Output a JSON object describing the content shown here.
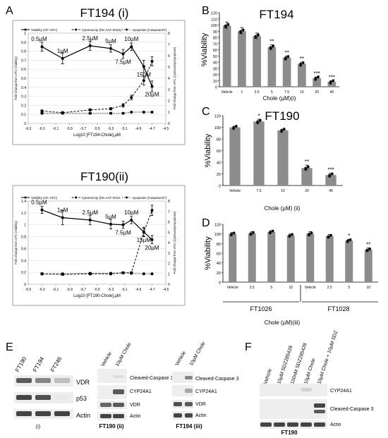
{
  "panels": {
    "A": {
      "letter": "A",
      "chart_i": {
        "title": "FT194 (i)",
        "legend": [
          "Viability (GF-AFC)",
          "Cytotoxicity (bis-AAF-R110)",
          "Apoptosis (Caspase3/7)"
        ],
        "xlabel": "Log10 [FT194-Chole],µM",
        "ylabel_left": "Fold Change from UTC (Viability)",
        "ylabel_right": "Fold Change from UTC (Cytotoxicity/Apoptosis)",
        "xticks": [
          "-6.5",
          "-6.3",
          "-6.1",
          "-5.9",
          "-5.7",
          "-5.5",
          "-5.3",
          "-5.1",
          "-4.9",
          "-4.7",
          "-4.5"
        ],
        "yticks_left": [
          "0",
          "0.1",
          "0.2",
          "0.3",
          "0.4",
          "0.5",
          "0.6",
          "0.7",
          "0.8",
          "0.9",
          "1"
        ],
        "yticks_right": [
          "0",
          "1",
          "2",
          "3",
          "4",
          "5",
          "6",
          "7",
          "8"
        ],
        "dose_labels": [
          "0.5µM",
          "1µM",
          "2.5µM",
          "5µM",
          "7.5µM",
          "10µM",
          "15µM",
          "20µM"
        ]
      },
      "chart_ii": {
        "title": "FT190(ii)",
        "legend": [
          "Viability (GF-AFC)",
          "Cytotoxicity (bis-AAF-R110",
          "Apoptosis (Caspase3/7)"
        ],
        "xlabel": "Log10 [FT190-Chole],µM",
        "ylabel_left": "Fold Change from UTC (Viability)",
        "ylabel_right": "Fold Change from UTC (Cytotoxicity/Apoptosis)",
        "xticks": [
          "-6.5",
          "-6.3",
          "-6.1",
          "-5.9",
          "-5.7",
          "-5.5",
          "-5.3",
          "-5.1",
          "-4.9",
          "-4.7",
          "-4.5"
        ],
        "yticks_left": [
          "0",
          "0.2",
          "0.4",
          "0.6",
          "0.8",
          "1",
          "1.2",
          "1.4"
        ],
        "yticks_right": [
          "0",
          "1",
          "2",
          "3",
          "4",
          "5",
          "6",
          "7",
          "8"
        ],
        "dose_labels": [
          "0.5µM",
          "1µM",
          "2.5µM",
          "5µM",
          "7.5µM",
          "10µM",
          "15µM",
          "20µM"
        ]
      }
    },
    "B": {
      "letter": "B",
      "title": "FT194",
      "ylabel": "%Viability",
      "xlabel": "Chole (µM)(i)",
      "yticks": [
        "0",
        "10",
        "20",
        "30",
        "40",
        "50",
        "60",
        "70",
        "80",
        "90",
        "100",
        "110",
        "120"
      ]
    },
    "C": {
      "letter": "C",
      "title": "FT190",
      "ylabel": "%Viability",
      "xlabel": "Chole (µM) (ii)",
      "yticks": [
        "0",
        "20",
        "40",
        "60",
        "80",
        "100",
        "120"
      ]
    },
    "D": {
      "letter": "D",
      "ylabel": "%Viability",
      "xlabel": "Chole (µM)(iii)",
      "yticks": [
        "0",
        "20",
        "40",
        "60",
        "80",
        "100",
        "120"
      ],
      "groups": [
        "FT1026",
        "FT1028"
      ]
    },
    "E": {
      "letter": "E",
      "blot_i": {
        "lanes": [
          "FT190",
          "FT194",
          "FT246"
        ],
        "bands": [
          "VDR",
          "p53",
          "Actin"
        ],
        "caption": "(i)"
      },
      "blot_ii": {
        "lanes": [
          "Vehicle",
          "10µM Chole"
        ],
        "bands": [
          "Cleaved-Caspase 3",
          "CYP24A1",
          "VDR",
          "Actin"
        ],
        "caption": "FT190 (ii)"
      },
      "blot_iii": {
        "lanes": [
          "Vehicle",
          "10µM Chole"
        ],
        "bands": [
          "Cleaved-Caspase 3",
          "CYP24A1",
          "VDR",
          "Actin"
        ],
        "caption": "FT194 (iii)"
      }
    },
    "F": {
      "letter": "F",
      "lanes": [
        "Vehicle",
        "10µM SDZ285428",
        "100nM SDZ285428",
        "10µM Chole",
        "10µM Chole + 10µM SDZ"
      ],
      "bands": [
        "CYP24A1",
        "Cleaved-Caspase 3",
        "Actin"
      ],
      "caption": "FT190"
    }
  },
  "chart_data": [
    {
      "type": "line",
      "panel": "A(i)",
      "title": "FT194 (i)",
      "xlabel": "Log10 [FT194-Chole],µM",
      "ylabel": "Fold Change from UTC (Viability)",
      "xlim": [
        -6.5,
        -4.5
      ],
      "ylim_left": [
        0,
        1
      ],
      "ylim_right": [
        0,
        8
      ],
      "series": [
        {
          "name": "Viability (GF-AFC)",
          "axis": "left",
          "style": "solid",
          "x": [
            -6.3,
            -6.0,
            -5.6,
            -5.3,
            -5.12,
            -5.0,
            -4.82,
            -4.7
          ],
          "y": [
            0.85,
            0.72,
            0.86,
            0.83,
            0.77,
            0.85,
            0.63,
            0.41
          ],
          "err": [
            0.05,
            0.06,
            0.05,
            0.04,
            0.05,
            0.04,
            0.07,
            0.06
          ]
        },
        {
          "name": "Cytotoxicity (bis-AAF-R110)",
          "axis": "right",
          "style": "dashed",
          "x": [
            -6.3,
            -6.0,
            -5.6,
            -5.3,
            -5.12,
            -5.0,
            -4.82,
            -4.7
          ],
          "y": [
            1.1,
            0.95,
            1.2,
            1.3,
            1.6,
            2.3,
            3.8,
            5.5
          ],
          "err": [
            0.1,
            0.1,
            0.1,
            0.1,
            0.15,
            0.2,
            0.4,
            0.4
          ]
        },
        {
          "name": "Apoptosis (Caspase3/7)",
          "axis": "right",
          "style": "dotted",
          "x": [
            -6.3,
            -6.0,
            -5.6,
            -5.3,
            -5.12,
            -5.0,
            -4.82,
            -4.7
          ],
          "y": [
            0.9,
            0.9,
            0.9,
            0.9,
            0.9,
            1.0,
            1.0,
            1.0
          ],
          "err": [
            0.05,
            0.05,
            0.05,
            0.05,
            0.05,
            0.05,
            0.05,
            0.05
          ]
        }
      ]
    },
    {
      "type": "line",
      "panel": "A(ii)",
      "title": "FT190(ii)",
      "xlabel": "Log10 [FT190-Chole],µM",
      "ylabel": "Fold Change from UTC (Viability)",
      "xlim": [
        -6.5,
        -4.5
      ],
      "ylim_left": [
        0,
        1.4
      ],
      "ylim_right": [
        0,
        8
      ],
      "series": [
        {
          "name": "Viability (GF-AFC)",
          "axis": "left",
          "style": "solid",
          "x": [
            -6.3,
            -6.0,
            -5.6,
            -5.3,
            -5.12,
            -5.0,
            -4.82,
            -4.7
          ],
          "y": [
            1.25,
            1.12,
            1.08,
            1.01,
            1.0,
            1.08,
            0.88,
            0.75
          ],
          "err": [
            0.06,
            0.12,
            0.08,
            0.08,
            0.06,
            0.06,
            0.08,
            0.07
          ]
        },
        {
          "name": "Cytotoxicity (bis-AAF-R110",
          "axis": "right",
          "style": "dashed",
          "x": [
            -6.3,
            -6.0,
            -5.6,
            -5.3,
            -5.12,
            -5.0,
            -4.82,
            -4.7
          ],
          "y": [
            1.0,
            0.95,
            1.0,
            1.0,
            1.1,
            1.1,
            5.0,
            7.1
          ],
          "err": [
            0.1,
            0.1,
            0.1,
            0.1,
            0.1,
            0.1,
            0.4,
            0.5
          ]
        },
        {
          "name": "Apoptosis (Caspase3/7)",
          "axis": "right",
          "style": "dotted",
          "x": [
            -6.3,
            -6.0,
            -5.6,
            -5.3,
            -5.12,
            -5.0,
            -4.82,
            -4.7
          ],
          "y": [
            1.0,
            1.0,
            1.05,
            1.05,
            1.1,
            1.05,
            1.0,
            1.0
          ],
          "err": [
            0.05,
            0.05,
            0.05,
            0.05,
            0.05,
            0.05,
            0.05,
            0.05
          ]
        }
      ]
    },
    {
      "type": "bar",
      "panel": "B",
      "title": "FT194",
      "categories": [
        "Vehicle",
        "1",
        "2.5",
        "5",
        "7.5",
        "10",
        "20",
        "40"
      ],
      "values": [
        99,
        90,
        82,
        64,
        47,
        37,
        14,
        8
      ],
      "errors": [
        6,
        6,
        5,
        4,
        3,
        3,
        2,
        2
      ],
      "significance": [
        "",
        "",
        "",
        "**",
        "**",
        "**",
        "***",
        "***"
      ],
      "xlabel": "Chole (µM)(i)",
      "ylabel": "%Viability",
      "ylim": [
        0,
        120
      ]
    },
    {
      "type": "bar",
      "panel": "C",
      "title": "FT190",
      "categories": [
        "Vehicle",
        "7.5",
        "10",
        "20",
        "40"
      ],
      "values": [
        100,
        110,
        95,
        30,
        18
      ],
      "errors": [
        2,
        4,
        2,
        5,
        3
      ],
      "significance": [
        "",
        "*",
        "",
        "**",
        "***"
      ],
      "xlabel": "Chole (µM) (ii)",
      "ylabel": "%Viability",
      "ylim": [
        0,
        120
      ]
    },
    {
      "type": "bar",
      "panel": "D",
      "categories": [
        "Vehicle",
        "2.5",
        "5",
        "10",
        "Vehicle",
        "2.5",
        "5",
        "10"
      ],
      "groups": [
        "FT1026",
        "FT1026",
        "FT1026",
        "FT1026",
        "FT1028",
        "FT1028",
        "FT1028",
        "FT1028"
      ],
      "values": [
        100,
        101,
        104,
        97,
        100,
        95,
        86,
        67
      ],
      "errors": [
        3,
        4,
        3,
        3,
        5,
        4,
        3,
        4
      ],
      "significance": [
        "",
        "",
        "",
        "",
        "",
        "",
        "*",
        "**"
      ],
      "xlabel": "Chole (µM)(iii)",
      "ylabel": "%Viability",
      "ylim": [
        0,
        120
      ]
    }
  ]
}
